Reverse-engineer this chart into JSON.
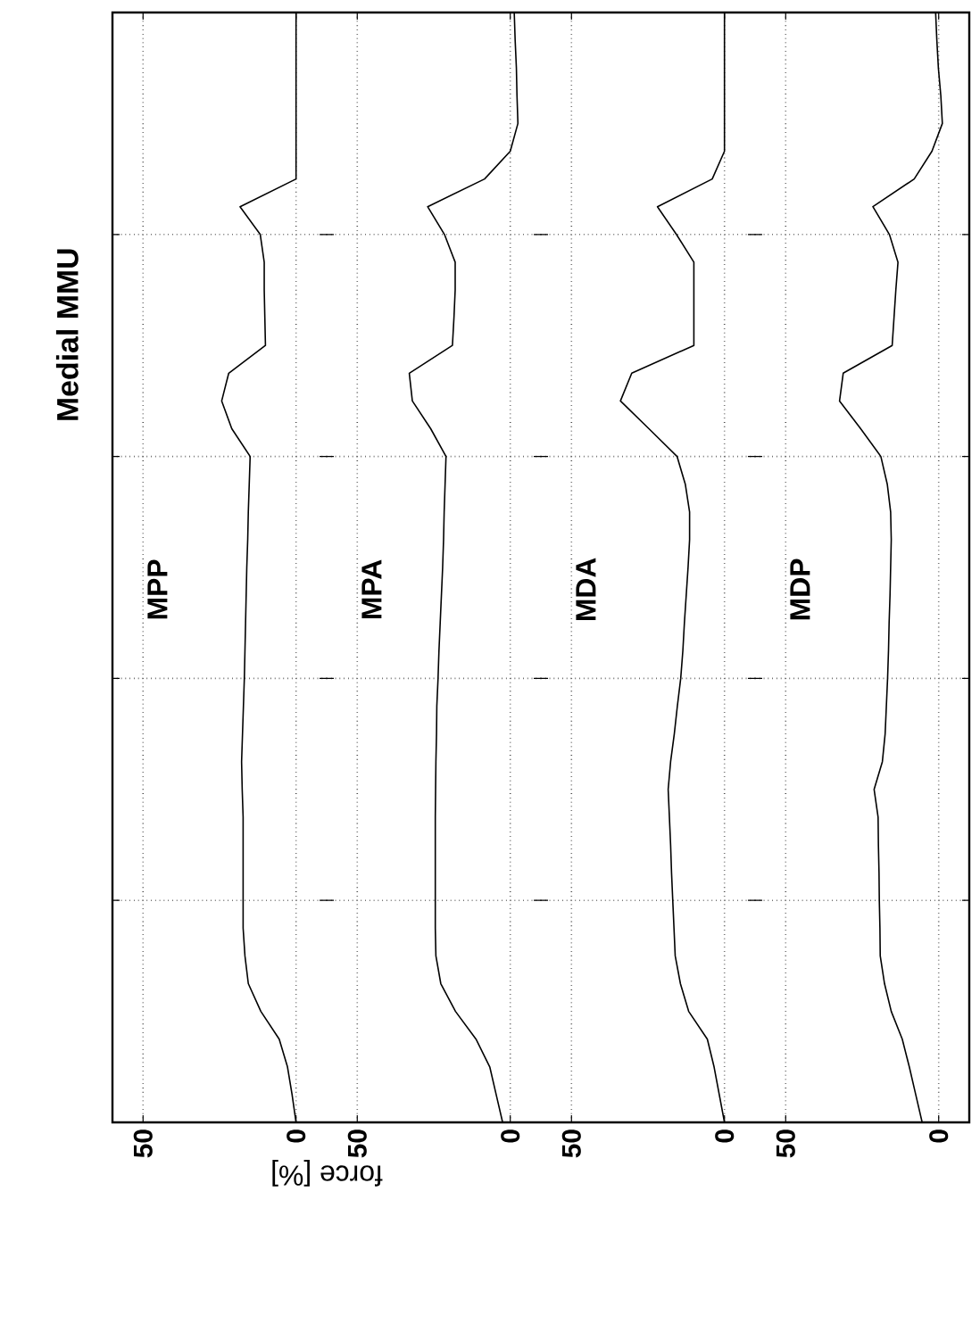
{
  "chart_data": [
    {
      "type": "line",
      "orientation": "horizontal",
      "title": "Medial MMU",
      "categories": [
        null,
        null,
        null,
        null,
        null,
        null,
        null,
        null,
        null,
        null,
        null,
        null,
        null,
        null,
        null,
        null,
        null,
        null,
        null,
        null,
        null,
        null,
        null,
        null,
        null,
        null,
        null,
        null,
        null,
        null,
        null,
        null,
        null,
        null,
        null,
        null,
        null,
        null,
        null,
        null,
        null
      ],
      "xlim": [
        60,
        -10
      ],
      "xticks": [
        50,
        0
      ],
      "grid": true,
      "tick_labels": "x",
      "series": [
        {
          "name": "MPP",
          "color": "#000000",
          "values": [
            0,
            0,
            0,
            0,
            0,
            0,
            0,
            18.3,
            11.7,
            10.4,
            10.4,
            10.2,
            10,
            22,
            24.3,
            21,
            15,
            15.3,
            15.6,
            15.8,
            16.1,
            16.3,
            16.5,
            16.7,
            16.9,
            17.2,
            17.5,
            17.8,
            17.6,
            17.3,
            17.3,
            17.3,
            17.3,
            17.3,
            16.7,
            15.6,
            11.5,
            5.5,
            2.8,
            1.3,
            0
          ]
        }
      ]
    },
    {
      "type": "line",
      "orientation": "horizontal",
      "xlabel": "force [%]",
      "categories": [
        null,
        null,
        null,
        null,
        null,
        null,
        null,
        null,
        null,
        null,
        null,
        null,
        null,
        null,
        null,
        null,
        null,
        null,
        null,
        null,
        null,
        null,
        null,
        null,
        null,
        null,
        null,
        null,
        null,
        null,
        null,
        null,
        null,
        null,
        null,
        null,
        null,
        null,
        null,
        null,
        null
      ],
      "xlim": [
        60,
        -10
      ],
      "xticks": [
        50,
        0
      ],
      "grid": true,
      "tick_labels": "x",
      "series": [
        {
          "name": "MPA",
          "color": "#000000",
          "values": [
            -1.3,
            -1.6,
            -2,
            -2.2,
            -2.5,
            0,
            8.4,
            27,
            21.5,
            18,
            18,
            18.4,
            18.9,
            33,
            32,
            26,
            21,
            21.3,
            21.6,
            21.8,
            22.1,
            22.5,
            22.9,
            23.3,
            23.6,
            24,
            24.1,
            24.3,
            24.4,
            24.5,
            24.5,
            24.5,
            24.5,
            24.5,
            24.3,
            22.7,
            17.9,
            11.2,
            6.7,
            4.6,
            2.5
          ]
        }
      ]
    },
    {
      "type": "line",
      "orientation": "horizontal",
      "categories": [
        null,
        null,
        null,
        null,
        null,
        null,
        null,
        null,
        null,
        null,
        null,
        null,
        null,
        null,
        null,
        null,
        null,
        null,
        null,
        null,
        null,
        null,
        null,
        null,
        null,
        null,
        null,
        null,
        null,
        null,
        null,
        null,
        null,
        null,
        null,
        null,
        null,
        null,
        null,
        null,
        null
      ],
      "xlim": [
        60,
        -10
      ],
      "xticks": [
        50,
        0
      ],
      "grid": true,
      "tick_labels": "x",
      "series": [
        {
          "name": "MDA",
          "color": "#000000",
          "values": [
            0,
            0,
            0,
            0,
            0,
            0,
            4,
            21.9,
            15.7,
            10,
            10,
            10,
            10,
            30.3,
            34,
            24.7,
            15.5,
            12.8,
            11.4,
            11.4,
            11.9,
            12.5,
            13.1,
            13.6,
            14.3,
            15.4,
            16.4,
            17.6,
            18.4,
            18,
            17.6,
            17.3,
            16.9,
            16.5,
            16.1,
            14.4,
            11.7,
            5.6,
            3.4,
            1.7,
            0
          ]
        }
      ]
    },
    {
      "type": "line",
      "orientation": "horizontal",
      "categories": [
        null,
        null,
        null,
        null,
        null,
        null,
        null,
        null,
        null,
        null,
        null,
        null,
        null,
        null,
        null,
        null,
        null,
        null,
        null,
        null,
        null,
        null,
        null,
        null,
        null,
        null,
        null,
        null,
        null,
        null,
        null,
        null,
        null,
        null,
        null,
        null,
        null,
        null,
        null,
        null,
        null
      ],
      "xlim": [
        60,
        -10
      ],
      "xticks": [
        50,
        0
      ],
      "grid": true,
      "tick_labels": "x",
      "series": [
        {
          "name": "MDP",
          "color": "#000000",
          "values": [
            1,
            0.6,
            0.1,
            -0.7,
            -1.2,
            2.2,
            8,
            21.5,
            16.1,
            13.3,
            14,
            14.6,
            15.2,
            31.2,
            32.4,
            25.5,
            18.9,
            16.8,
            15.7,
            15.5,
            15.7,
            15.9,
            16.2,
            16.4,
            16.7,
            17.1,
            17.5,
            18.4,
            21.1,
            19.8,
            19.7,
            19.5,
            19.4,
            19.2,
            19.1,
            17.7,
            15.5,
            11.9,
            9.6,
            7.5,
            5.4
          ]
        }
      ]
    }
  ]
}
